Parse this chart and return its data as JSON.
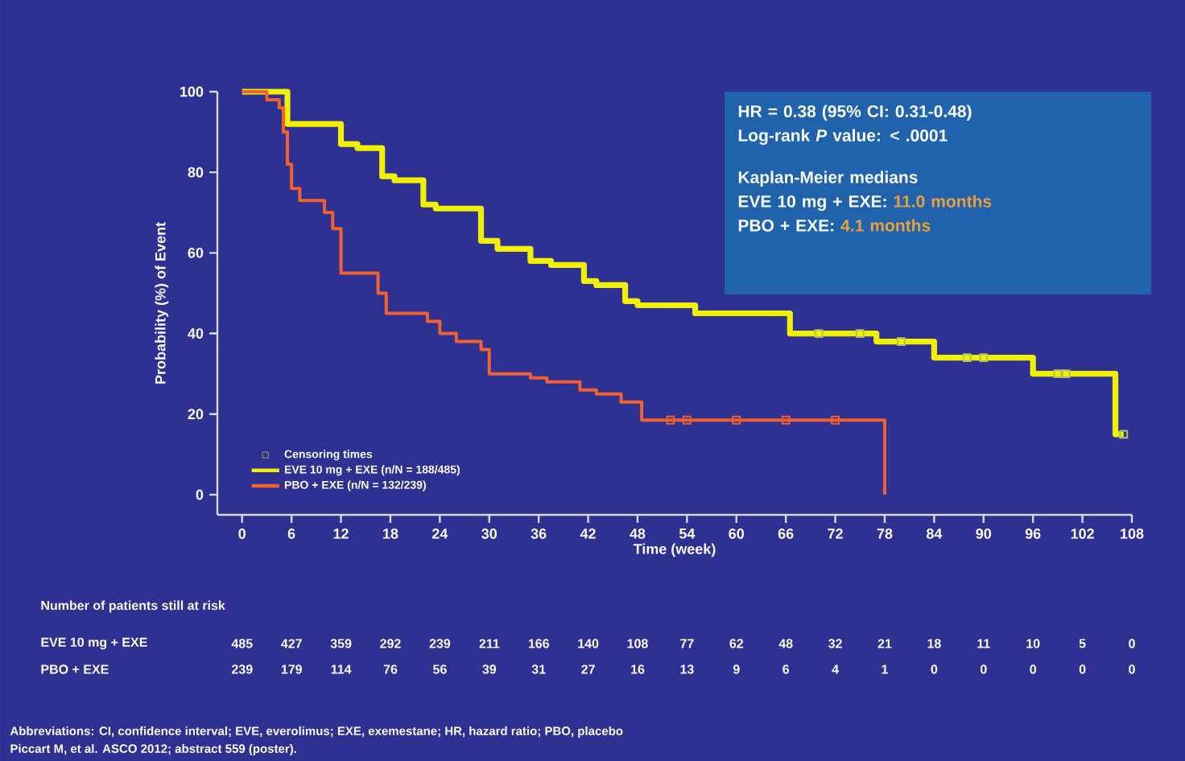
{
  "chart_data": {
    "type": "step",
    "xlabel": "Time (week)",
    "ylabel": "Probability (%) of Event",
    "xlim": [
      -3,
      108
    ],
    "ylim": [
      -5,
      100
    ],
    "xticks": [
      0,
      6,
      12,
      18,
      24,
      30,
      36,
      42,
      48,
      54,
      60,
      66,
      72,
      78,
      84,
      90,
      96,
      102,
      108
    ],
    "yticks": [
      0,
      20,
      40,
      60,
      80,
      100
    ],
    "legend": "bottom left",
    "grid": false,
    "series": [
      {
        "name": "EVE 10 mg + EXE (n/N = 188/485)",
        "color": "#f0f000",
        "x": [
          0,
          5.5,
          12,
          14,
          17,
          18.5,
          22,
          23.5,
          29,
          31,
          35,
          37.5,
          41.5,
          43,
          46.5,
          48,
          55,
          66.5,
          77,
          84,
          96,
          106,
          107
        ],
        "values": [
          100,
          92,
          87,
          86,
          79,
          78,
          72,
          71,
          63,
          61,
          58,
          57,
          53,
          52,
          48,
          47,
          45,
          40,
          38,
          34,
          30,
          15,
          15
        ]
      },
      {
        "name": "PBO + EXE (n/N = 132/239)",
        "color": "#f06030",
        "x": [
          0,
          3,
          4.5,
          5,
          5.5,
          6,
          7,
          10,
          11,
          12,
          16.5,
          17.5,
          22.5,
          24,
          26,
          29,
          30,
          35,
          37,
          41,
          43,
          46,
          48.5,
          78,
          78
        ],
        "values": [
          100,
          98,
          96,
          90,
          82,
          76,
          73,
          70,
          66,
          55,
          50,
          45,
          43,
          40,
          38,
          36,
          30,
          29,
          28,
          26,
          25,
          23,
          18.5,
          18.5,
          0
        ]
      },
      {
        "name": "Censoring times",
        "type": "scatter",
        "marker": "square",
        "x": [
          70,
          75,
          80,
          88,
          90,
          99,
          100,
          107,
          52,
          54,
          60,
          66,
          72
        ],
        "values": [
          40,
          40,
          38,
          34,
          34,
          30,
          30,
          15,
          18.5,
          18.5,
          18.5,
          18.5,
          18.5
        ],
        "colors": [
          "#b0c060",
          "#b0c060",
          "#b0c060",
          "#b0c060",
          "#b0c060",
          "#b0c060",
          "#b0c060",
          "#b0c060",
          "#f06030",
          "#f06030",
          "#f06030",
          "#f06030",
          "#f06030"
        ]
      }
    ],
    "annotations": [
      "HR = 0.38 (95% CI: 0.31-0.48)",
      "Log-rank *P* value: < .0001",
      "Kaplan-Meier medians",
      "EVE 10 mg + EXE:",
      "11.0 months",
      "PBO + EXE:",
      "4.1 months",
      "Number of patients still at risk",
      "EVE 10 mg + EXE",
      "485",
      "427",
      "359",
      "292",
      "239",
      "211",
      "166",
      "140",
      "108",
      "77",
      "62",
      "48",
      "32",
      "21",
      "18",
      "11",
      "10",
      "5",
      "0",
      "PBO + EXE",
      "239",
      "179",
      "114",
      "76",
      "56",
      "39",
      "31",
      "27",
      "16",
      "13",
      "9",
      "6",
      "4",
      "1",
      "0",
      "0",
      "0",
      "0",
      "0",
      "Abbreviations:  CI, confidence interval;  EVE, everolimus;  EXE, exemestane;  HR, hazard ratio;  PBO, placebo",
      "Piccart M, et al. ASCO 2012; abstract 559 (poster)."
    ]
  }
}
